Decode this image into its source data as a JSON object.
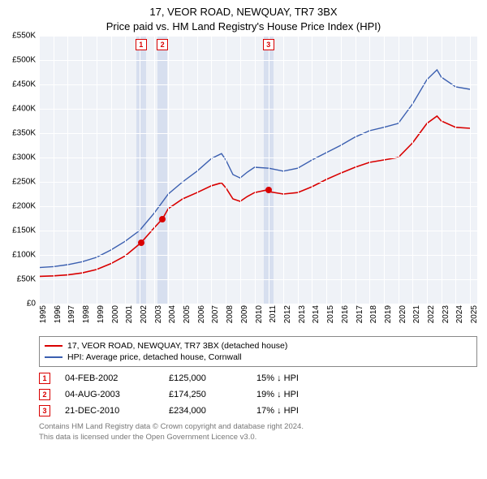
{
  "title": {
    "line1": "17, VEOR ROAD, NEWQUAY, TR7 3BX",
    "line2": "Price paid vs. HM Land Registry's House Price Index (HPI)"
  },
  "chart": {
    "type": "line",
    "background_color": "#eff2f7",
    "grid_color": "#ffffff",
    "y": {
      "min": 0,
      "max": 550000,
      "tick_step": 50000,
      "labels": [
        "£0",
        "£50K",
        "£100K",
        "£150K",
        "£200K",
        "£250K",
        "£300K",
        "£350K",
        "£400K",
        "£450K",
        "£500K",
        "£550K"
      ]
    },
    "x": {
      "min": 1995,
      "max": 2025.5,
      "labels": [
        "1995",
        "1996",
        "1997",
        "1998",
        "1999",
        "2000",
        "2001",
        "2002",
        "2003",
        "2004",
        "2005",
        "2006",
        "2007",
        "2008",
        "2009",
        "2010",
        "2011",
        "2012",
        "2013",
        "2014",
        "2015",
        "2016",
        "2017",
        "2018",
        "2019",
        "2020",
        "2021",
        "2022",
        "2023",
        "2024",
        "2025"
      ]
    },
    "sale_band_color": "#d7dfef",
    "series": [
      {
        "id": "property",
        "label": "17, VEOR ROAD, NEWQUAY, TR7 3BX (detached house)",
        "color": "#d90000",
        "line_width": 1.6,
        "points": [
          [
            1995,
            56000
          ],
          [
            1996,
            57000
          ],
          [
            1997,
            59000
          ],
          [
            1998,
            63000
          ],
          [
            1999,
            70000
          ],
          [
            2000,
            82000
          ],
          [
            2001,
            98000
          ],
          [
            2002.1,
            125000
          ],
          [
            2003,
            155000
          ],
          [
            2003.6,
            174250
          ],
          [
            2004,
            195000
          ],
          [
            2005,
            215000
          ],
          [
            2006,
            228000
          ],
          [
            2007,
            242000
          ],
          [
            2007.7,
            248000
          ],
          [
            2008,
            238000
          ],
          [
            2008.5,
            215000
          ],
          [
            2009,
            210000
          ],
          [
            2009.5,
            220000
          ],
          [
            2010,
            228000
          ],
          [
            2010.97,
            234000
          ],
          [
            2011,
            230000
          ],
          [
            2012,
            225000
          ],
          [
            2013,
            228000
          ],
          [
            2014,
            240000
          ],
          [
            2015,
            255000
          ],
          [
            2016,
            268000
          ],
          [
            2017,
            280000
          ],
          [
            2018,
            290000
          ],
          [
            2019,
            295000
          ],
          [
            2020,
            300000
          ],
          [
            2021,
            330000
          ],
          [
            2022,
            370000
          ],
          [
            2022.7,
            385000
          ],
          [
            2023,
            375000
          ],
          [
            2024,
            362000
          ],
          [
            2025,
            360000
          ]
        ]
      },
      {
        "id": "hpi",
        "label": "HPI: Average price, detached house, Cornwall",
        "color": "#3b5fb0",
        "line_width": 1.4,
        "points": [
          [
            1995,
            74000
          ],
          [
            1996,
            76000
          ],
          [
            1997,
            80000
          ],
          [
            1998,
            86000
          ],
          [
            1999,
            95000
          ],
          [
            2000,
            110000
          ],
          [
            2001,
            128000
          ],
          [
            2002,
            150000
          ],
          [
            2003,
            185000
          ],
          [
            2004,
            225000
          ],
          [
            2005,
            250000
          ],
          [
            2006,
            272000
          ],
          [
            2007,
            298000
          ],
          [
            2007.7,
            308000
          ],
          [
            2008,
            295000
          ],
          [
            2008.5,
            265000
          ],
          [
            2009,
            258000
          ],
          [
            2009.5,
            270000
          ],
          [
            2010,
            280000
          ],
          [
            2011,
            278000
          ],
          [
            2012,
            272000
          ],
          [
            2013,
            278000
          ],
          [
            2014,
            295000
          ],
          [
            2015,
            310000
          ],
          [
            2016,
            325000
          ],
          [
            2017,
            342000
          ],
          [
            2018,
            355000
          ],
          [
            2019,
            362000
          ],
          [
            2020,
            370000
          ],
          [
            2021,
            410000
          ],
          [
            2022,
            460000
          ],
          [
            2022.7,
            480000
          ],
          [
            2023,
            465000
          ],
          [
            2024,
            445000
          ],
          [
            2025,
            440000
          ]
        ]
      }
    ],
    "sales": [
      {
        "n": "1",
        "x": 2002.1,
        "date": "04-FEB-2002",
        "price": 125000,
        "price_label": "£125,000",
        "delta": "15% ↓ HPI"
      },
      {
        "n": "2",
        "x": 2003.59,
        "date": "04-AUG-2003",
        "price": 174250,
        "price_label": "£174,250",
        "delta": "19% ↓ HPI"
      },
      {
        "n": "3",
        "x": 2010.97,
        "date": "21-DEC-2010",
        "price": 234000,
        "price_label": "£234,000",
        "delta": "17% ↓ HPI"
      }
    ]
  },
  "legend": {
    "rows": [
      {
        "color": "#d90000",
        "label": "17, VEOR ROAD, NEWQUAY, TR7 3BX (detached house)"
      },
      {
        "color": "#3b5fb0",
        "label": "HPI: Average price, detached house, Cornwall"
      }
    ]
  },
  "footer": {
    "line1": "Contains HM Land Registry data © Crown copyright and database right 2024.",
    "line2": "This data is licensed under the Open Government Licence v3.0."
  }
}
